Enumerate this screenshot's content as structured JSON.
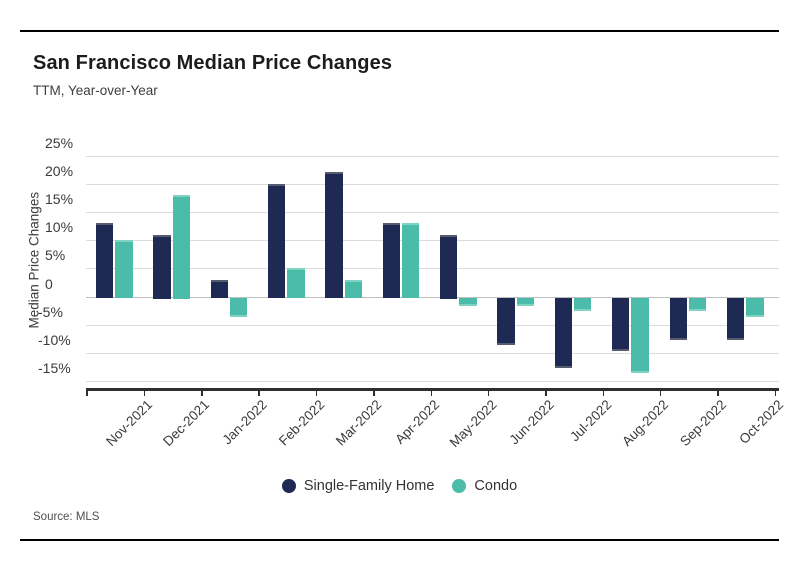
{
  "header": {
    "title": "San Francisco Median Price Changes",
    "subtitle": "TTM, Year-over-Year"
  },
  "chart_data": {
    "type": "bar",
    "title": "San Francisco Median Price Changes",
    "subtitle": "TTM, Year-over-Year",
    "categories": [
      "Nov-2021",
      "Dec-2021",
      "Jan-2022",
      "Feb-2022",
      "Mar-2022",
      "Apr-2022",
      "May-2022",
      "Jun-2022",
      "Jul-2022",
      "Aug-2022",
      "Sep-2022",
      "Oct-2022"
    ],
    "series": [
      {
        "name": "Single-Family Home",
        "color": "#1f2a54",
        "values": [
          13,
          11,
          3,
          20,
          22,
          13,
          11,
          -8,
          -12,
          -9,
          -7,
          -7
        ]
      },
      {
        "name": "Condo",
        "color": "#4bbcaa",
        "values": [
          10,
          18,
          -3,
          5,
          3,
          13,
          -1,
          -1,
          -2,
          -13,
          -2,
          -3
        ]
      }
    ],
    "xlabel": "",
    "ylabel": "Median Price Changes",
    "yticks": [
      25,
      20,
      15,
      10,
      5,
      0,
      -5,
      -10,
      -15
    ],
    "ytick_labels": [
      "25%",
      "20%",
      "15%",
      "10%",
      "5%",
      "0",
      "-5%",
      "-10%",
      "-15%"
    ],
    "ylim": [
      -16.5,
      27.5
    ],
    "grid": true,
    "legend_position": "bottom"
  },
  "legend": {
    "items": [
      {
        "label": "Single-Family Home",
        "color": "#1f2a54"
      },
      {
        "label": "Condo",
        "color": "#4bbcaa"
      }
    ]
  },
  "footer": {
    "source": "Source: MLS"
  }
}
